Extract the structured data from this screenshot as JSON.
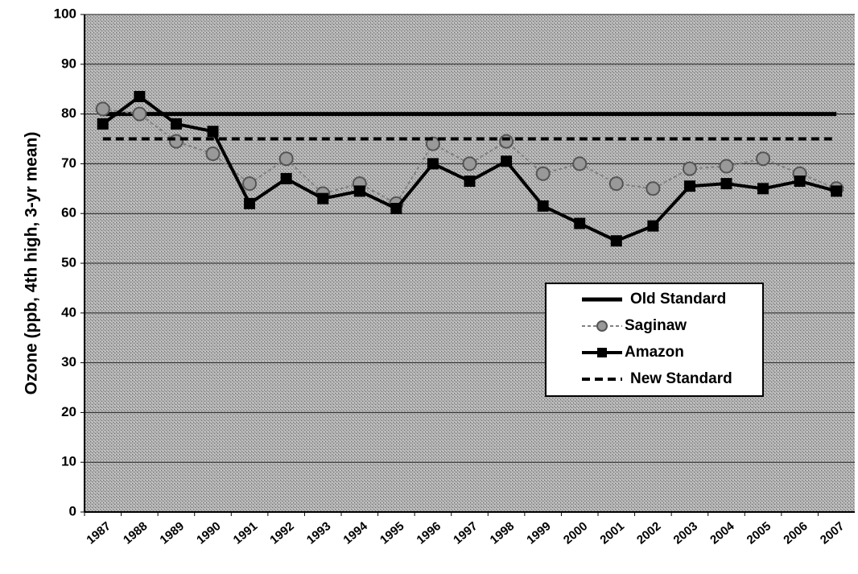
{
  "chart_data": {
    "type": "line",
    "y_label": "Ozone (ppb, 4th high, 3-yr mean)",
    "categories": [
      "1987",
      "1988",
      "1989",
      "1990",
      "1991",
      "1992",
      "1993",
      "1994",
      "1995",
      "1996",
      "1997",
      "1998",
      "1999",
      "2000",
      "2001",
      "2002",
      "2003",
      "2004",
      "2005",
      "2006",
      "2007"
    ],
    "series": [
      {
        "name": "Old Standard",
        "color": "#000000",
        "values": [
          80,
          80,
          80,
          80,
          80,
          80,
          80,
          80,
          80,
          80,
          80,
          80,
          80,
          80,
          80,
          80,
          80,
          80,
          80,
          80,
          80
        ]
      },
      {
        "name": "Saginaw",
        "color": "#808080",
        "values": [
          81,
          80,
          74.5,
          72,
          66,
          71,
          64,
          66,
          62,
          74,
          70,
          74.5,
          68,
          70,
          66,
          65,
          69,
          69.5,
          71,
          68,
          65
        ]
      },
      {
        "name": "Amazon",
        "color": "#000000",
        "values": [
          78,
          83.5,
          78,
          76.5,
          62,
          67,
          63,
          64.5,
          61,
          70,
          66.5,
          70.5,
          61.5,
          58,
          54.5,
          57.5,
          65.5,
          66,
          65,
          66.5,
          64.5
        ]
      },
      {
        "name": "New Standard",
        "color": "#000000",
        "values": [
          75,
          75,
          75,
          75,
          75,
          75,
          75,
          75,
          75,
          75,
          75,
          75,
          75,
          75,
          75,
          75,
          75,
          75,
          75,
          75,
          75
        ]
      }
    ],
    "ylim": [
      0,
      100
    ],
    "yticks": [
      0,
      10,
      20,
      30,
      40,
      50,
      60,
      70,
      80,
      90,
      100
    ],
    "grid": true,
    "legend": "lower right"
  }
}
